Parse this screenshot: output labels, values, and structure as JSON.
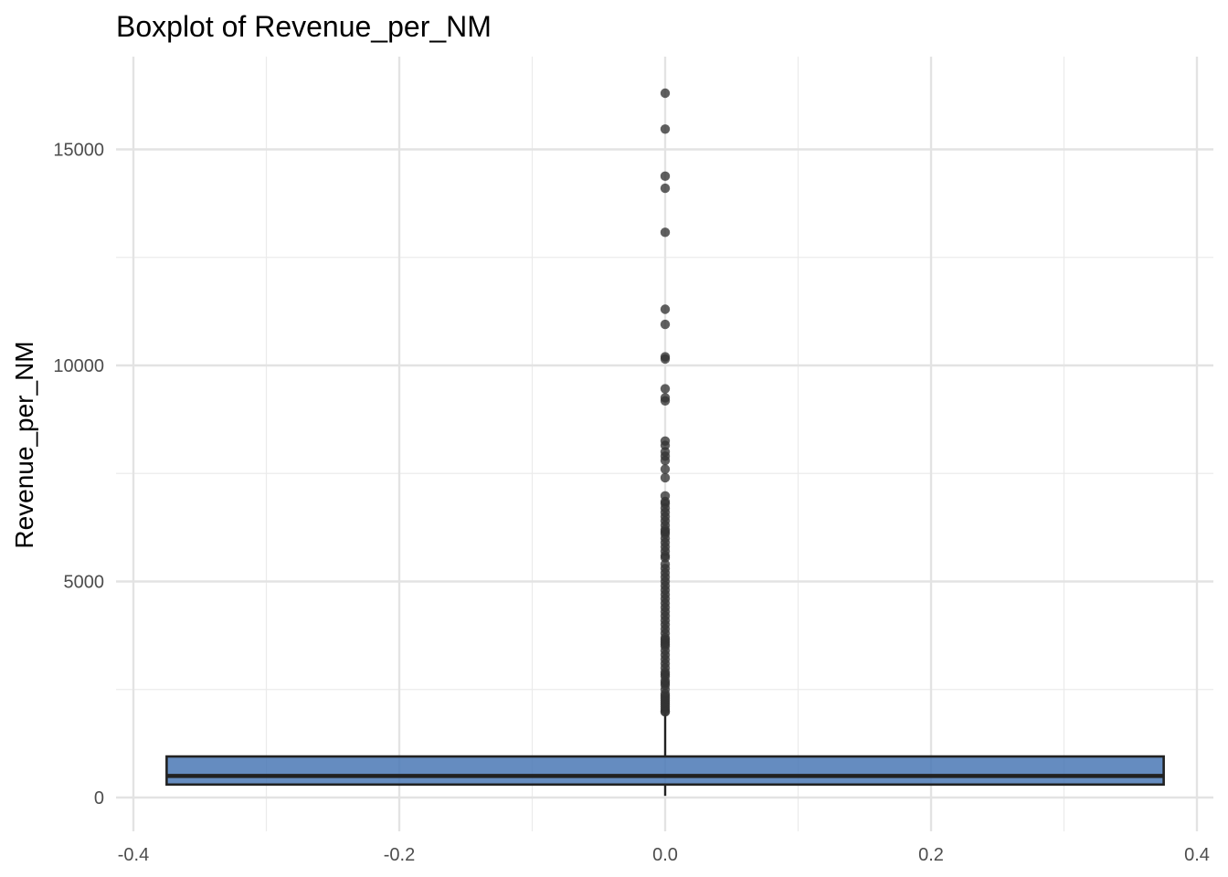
{
  "chart_data": {
    "type": "boxplot",
    "title": "Boxplot of Revenue_per_NM",
    "xlabel": "",
    "ylabel": "Revenue_per_NM",
    "xlim": [
      -0.4,
      0.4
    ],
    "ylim": [
      0,
      17000
    ],
    "x_ticks": [
      -0.4,
      -0.2,
      0.0,
      0.2,
      0.4
    ],
    "x_tick_labels": [
      "-0.4",
      "-0.2",
      "0.0",
      "0.2",
      "0.4"
    ],
    "y_ticks": [
      0,
      5000,
      10000,
      15000
    ],
    "y_tick_labels": [
      "0",
      "5000",
      "10000",
      "15000"
    ],
    "grid": true,
    "box": {
      "x_center": 0.0,
      "x_left": -0.375,
      "x_right": 0.375,
      "q1": 300,
      "median": 500,
      "q3": 950,
      "whisker_low": 40,
      "whisker_high": 1950,
      "fill": "#4a78b5",
      "stroke": "#222222"
    },
    "outliers": [
      16300,
      15470,
      14380,
      14100,
      13080,
      11300,
      10950,
      10200,
      10150,
      9460,
      9180,
      9250,
      8250,
      8150,
      8000,
      7900,
      7800,
      7600,
      7400,
      6980,
      6850,
      6800,
      6700,
      6600,
      6500,
      6400,
      6300,
      6200,
      6150,
      6100,
      6000,
      5900,
      5800,
      5700,
      5600,
      5550,
      5400,
      5300,
      5200,
      5100,
      5000,
      4900,
      4800,
      4700,
      4600,
      4500,
      4400,
      4300,
      4200,
      4100,
      4000,
      3900,
      3800,
      3700,
      3650,
      3600,
      3550,
      3500,
      3400,
      3300,
      3200,
      3100,
      3000,
      2900,
      2850,
      2800,
      2700,
      2650,
      2600,
      2500,
      2400,
      2350,
      2300,
      2250,
      2200,
      2150,
      2100,
      2050,
      2000,
      1980
    ],
    "outlier_color": "#333333"
  }
}
